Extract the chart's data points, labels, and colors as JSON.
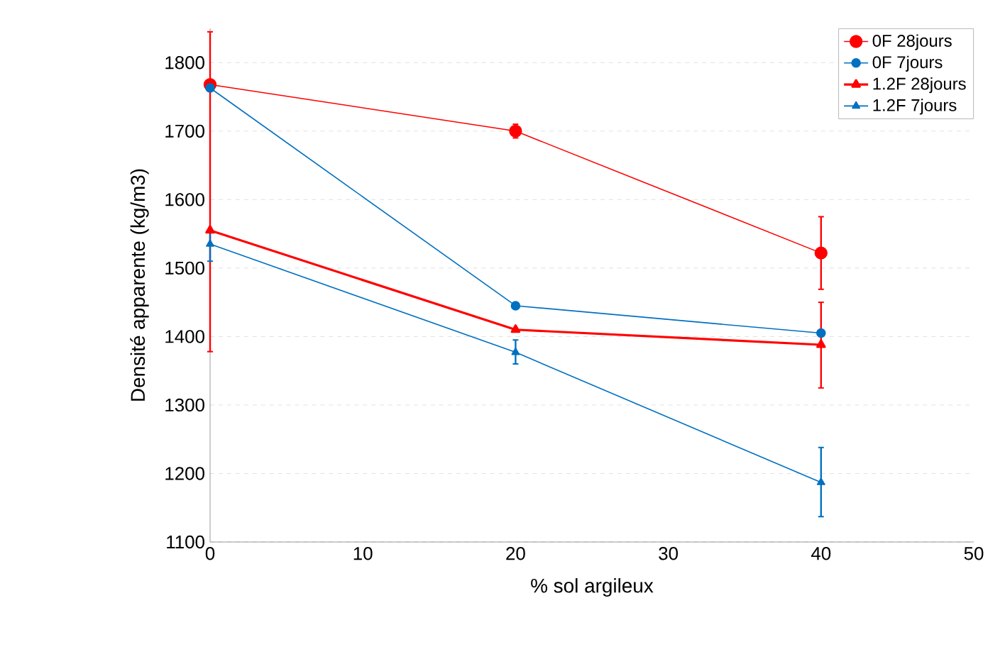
{
  "chart_data": {
    "type": "line",
    "xlabel": "% sol argileux",
    "ylabel": "Densité apparente (kg/m3)",
    "x": [
      0,
      20,
      40
    ],
    "xlim": [
      0,
      50
    ],
    "xticks": [
      0,
      10,
      20,
      30,
      40,
      50
    ],
    "ylim": [
      1100,
      1850
    ],
    "yticks": [
      1100,
      1200,
      1300,
      1400,
      1500,
      1600,
      1700,
      1800
    ],
    "grid": "y",
    "legend": "top right",
    "series": [
      {
        "name": "0F 28jours",
        "color": "#ff0000",
        "marker": "circle",
        "values": [
          1768,
          1700,
          1522
        ],
        "errors": [
          [
            1378,
            1845
          ],
          10,
          53
        ]
      },
      {
        "name": "0F 7jours",
        "color": "#0070c0",
        "marker": "circle",
        "values": [
          1763,
          1445,
          1405
        ]
      },
      {
        "name": "1.2F 28jours",
        "color": "#ff0000",
        "marker": "triangle",
        "values": [
          1555,
          1410,
          1388
        ],
        "errors": [
          null,
          null,
          [
            1325,
            1450
          ]
        ]
      },
      {
        "name": "1.2F 7jours",
        "color": "#0070c0",
        "marker": "triangle",
        "values": [
          1535,
          1377,
          1187
        ],
        "errors": [
          [
            1510,
            1555
          ],
          [
            1360,
            1395
          ],
          [
            1137,
            1238
          ]
        ]
      }
    ]
  }
}
